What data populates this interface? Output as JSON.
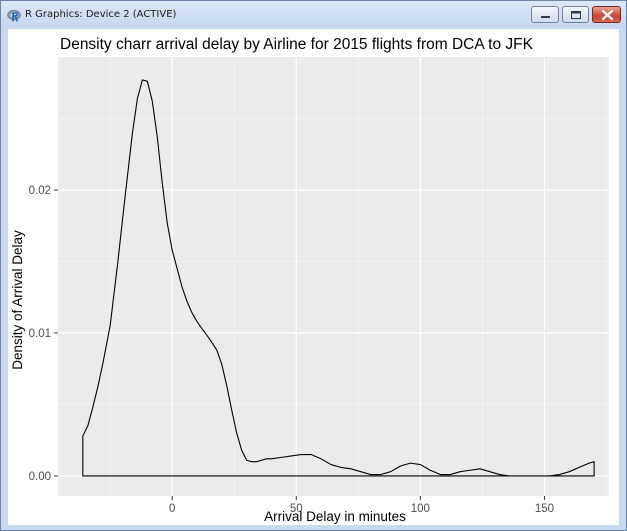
{
  "window": {
    "title": "R Graphics: Device 2 (ACTIVE)",
    "app_icon": "r-logo-icon",
    "buttons": {
      "minimize_icon": "minimize-icon",
      "maximize_icon": "maximize-icon",
      "close_icon": "close-icon"
    }
  },
  "colors": {
    "panel_background": "#ebebeb",
    "grid_major": "#ffffff",
    "grid_minor": "#f6f6f6",
    "line": "#000000",
    "axis_text": "#4d4d4d",
    "close_button": "#c7452f",
    "titlebar": "#c9daf0"
  },
  "chart_data": {
    "type": "area",
    "title": "Density charr arrival delay by Airline for 2015 flights from DCA to JFK",
    "xlabel": "Arrival Delay in minutes",
    "ylabel": "Density of Arrival Delay",
    "xlim": [
      -46,
      176
    ],
    "ylim": [
      -0.0014,
      0.0293
    ],
    "x_ticks": [
      0,
      50,
      100,
      150
    ],
    "x_tick_labels": [
      "0",
      "50",
      "100",
      "150"
    ],
    "y_ticks": [
      0.0,
      0.01,
      0.02
    ],
    "y_tick_labels": [
      "0.00",
      "0.01",
      "0.02"
    ],
    "grid": true,
    "legend": "none",
    "fill": "none",
    "series": [
      {
        "x": [
          -36,
          -36,
          -34,
          -32,
          -30,
          -28,
          -25,
          -22,
          -19,
          -16,
          -14,
          -12,
          -10,
          -8,
          -6,
          -4,
          -2,
          0,
          2,
          4,
          6,
          8,
          10,
          12,
          15,
          18,
          20,
          22,
          24,
          26,
          28,
          30,
          32,
          34,
          36,
          38,
          40,
          44,
          48,
          52,
          56,
          60,
          64,
          68,
          72,
          76,
          80,
          84,
          88,
          92,
          96,
          100,
          104,
          108,
          112,
          116,
          120,
          124,
          128,
          132,
          136,
          140,
          144,
          148,
          152,
          156,
          160,
          164,
          168,
          170,
          170
        ],
        "y": [
          0.0,
          0.0028,
          0.0035,
          0.0048,
          0.0062,
          0.0078,
          0.0105,
          0.0148,
          0.0195,
          0.024,
          0.0264,
          0.0277,
          0.0276,
          0.0262,
          0.0237,
          0.0205,
          0.0177,
          0.0158,
          0.0145,
          0.0132,
          0.0122,
          0.0114,
          0.0108,
          0.0103,
          0.0096,
          0.0088,
          0.0078,
          0.0063,
          0.0046,
          0.003,
          0.0018,
          0.0011,
          0.001,
          0.001,
          0.0011,
          0.0012,
          0.0012,
          0.0013,
          0.0014,
          0.0015,
          0.0015,
          0.0012,
          0.0008,
          0.0006,
          0.0005,
          0.0003,
          0.0001,
          0.0001,
          0.0003,
          0.0007,
          0.0009,
          0.0008,
          0.0004,
          0.0001,
          0.0001,
          0.0003,
          0.0004,
          0.0005,
          0.0003,
          0.0001,
          0.0,
          0.0,
          0.0,
          0.0,
          0.0,
          0.0001,
          0.0003,
          0.0006,
          0.0009,
          0.001,
          0.0
        ]
      }
    ]
  }
}
